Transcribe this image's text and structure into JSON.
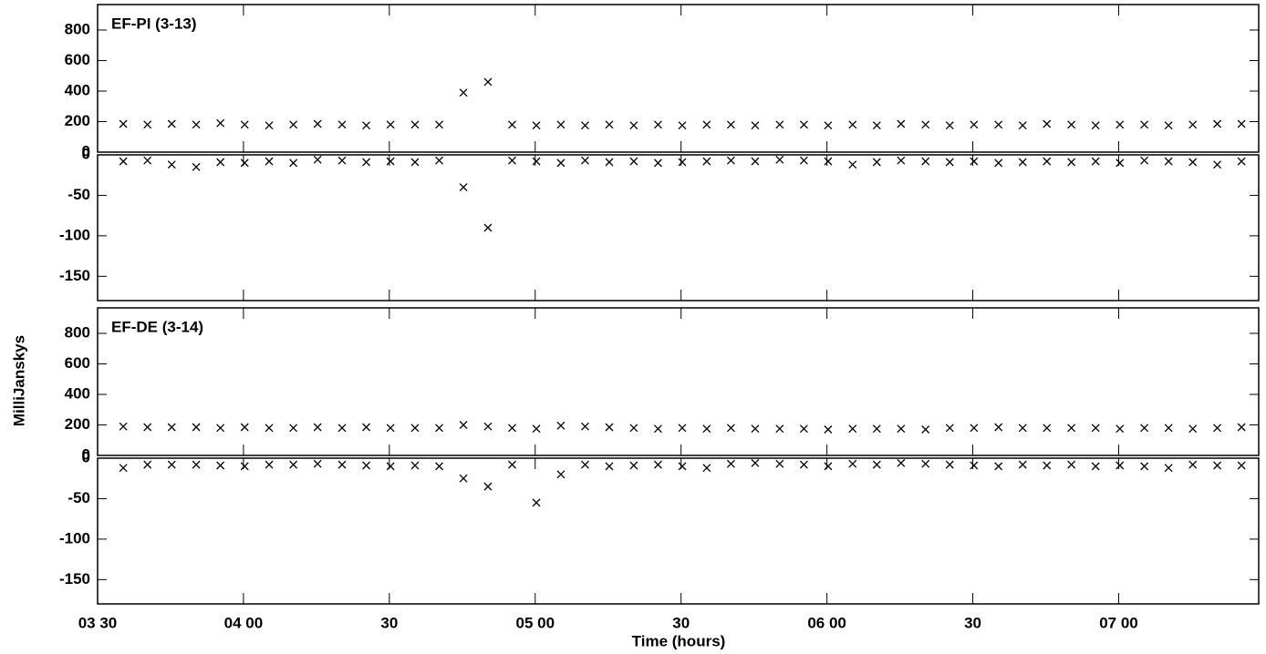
{
  "ylabel": "MilliJanskys",
  "xlabel": "Time (hours)",
  "chart_data": [
    {
      "type": "scatter",
      "label": "EF-PI (3-13)",
      "color": "#000000",
      "x": [
        3.588,
        3.671,
        3.754,
        3.838,
        3.921,
        4.004,
        4.088,
        4.171,
        4.254,
        4.338,
        4.421,
        4.504,
        4.588,
        4.671,
        4.754,
        4.838,
        4.921,
        5.004,
        5.088,
        5.171,
        5.254,
        5.338,
        5.421,
        5.504,
        5.588,
        5.671,
        5.754,
        5.838,
        5.921,
        6.004,
        6.088,
        6.171,
        6.254,
        6.338,
        6.421,
        6.504,
        6.588,
        6.671,
        6.754,
        6.838,
        6.921,
        7.004,
        7.088,
        7.171,
        7.254,
        7.338,
        7.421
      ],
      "values": [
        185,
        180,
        185,
        180,
        190,
        180,
        175,
        180,
        185,
        180,
        175,
        180,
        180,
        180,
        390,
        460,
        180,
        175,
        180,
        175,
        180,
        175,
        180,
        175,
        180,
        180,
        175,
        180,
        180,
        175,
        180,
        175,
        185,
        180,
        175,
        180,
        180,
        175,
        185,
        180,
        175,
        180,
        180,
        175,
        180,
        185,
        185
      ],
      "xlim": [
        3.5,
        7.48
      ],
      "xticks": [
        {
          "value": 3.5,
          "label": "03 30"
        },
        {
          "value": 4,
          "label": "04 00"
        },
        {
          "value": 4.5,
          "label": "30"
        },
        {
          "value": 5,
          "label": "05 00"
        },
        {
          "value": 5.5,
          "label": "30"
        },
        {
          "value": 6,
          "label": "06 00"
        },
        {
          "value": 6.5,
          "label": "30"
        },
        {
          "value": 7,
          "label": "07 00"
        }
      ],
      "ylim": [
        0,
        967
      ],
      "yticks": [
        0,
        200,
        400,
        600,
        800
      ]
    },
    {
      "type": "scatter",
      "color": "#000000",
      "x": [
        3.588,
        3.671,
        3.754,
        3.838,
        3.921,
        4.004,
        4.088,
        4.171,
        4.254,
        4.338,
        4.421,
        4.504,
        4.588,
        4.671,
        4.754,
        4.838,
        4.921,
        5.004,
        5.088,
        5.171,
        5.254,
        5.338,
        5.421,
        5.504,
        5.588,
        5.671,
        5.754,
        5.838,
        5.921,
        6.004,
        6.088,
        6.171,
        6.254,
        6.338,
        6.421,
        6.504,
        6.588,
        6.671,
        6.754,
        6.838,
        6.921,
        7.004,
        7.088,
        7.171,
        7.254,
        7.338,
        7.421
      ],
      "values": [
        -8,
        -7,
        -12,
        -15,
        -9,
        -10,
        -8,
        -10,
        -6,
        -7,
        -9,
        -8,
        -9,
        -7,
        -40,
        -90,
        -7,
        -8,
        -10,
        -7,
        -9,
        -8,
        -10,
        -9,
        -8,
        -7,
        -8,
        -6,
        -7,
        -8,
        -12,
        -9,
        -7,
        -8,
        -9,
        -8,
        -10,
        -9,
        -8,
        -9,
        -8,
        -10,
        -7,
        -8,
        -9,
        -12,
        -8
      ],
      "xlim": [
        3.5,
        7.48
      ],
      "xticks": [
        {
          "value": 3.5,
          "label": "03 30"
        },
        {
          "value": 4,
          "label": "04 00"
        },
        {
          "value": 4.5,
          "label": "30"
        },
        {
          "value": 5,
          "label": "05 00"
        },
        {
          "value": 5.5,
          "label": "30"
        },
        {
          "value": 6,
          "label": "06 00"
        },
        {
          "value": 6.5,
          "label": "30"
        },
        {
          "value": 7,
          "label": "07 00"
        }
      ],
      "ylim": [
        -180,
        0
      ],
      "yticks": [
        0,
        -50,
        -100,
        -150
      ]
    },
    {
      "type": "scatter",
      "label": "EF-DE (3-14)",
      "color": "#000000",
      "x": [
        3.588,
        3.671,
        3.754,
        3.838,
        3.921,
        4.004,
        4.088,
        4.171,
        4.254,
        4.338,
        4.421,
        4.504,
        4.588,
        4.671,
        4.754,
        4.838,
        4.921,
        5.004,
        5.088,
        5.171,
        5.254,
        5.338,
        5.421,
        5.504,
        5.588,
        5.671,
        5.754,
        5.838,
        5.921,
        6.004,
        6.088,
        6.171,
        6.254,
        6.338,
        6.421,
        6.504,
        6.588,
        6.671,
        6.754,
        6.838,
        6.921,
        7.004,
        7.088,
        7.171,
        7.254,
        7.338,
        7.421
      ],
      "values": [
        190,
        185,
        185,
        185,
        180,
        185,
        180,
        180,
        185,
        180,
        185,
        180,
        180,
        180,
        200,
        190,
        180,
        175,
        195,
        190,
        185,
        180,
        175,
        180,
        175,
        180,
        175,
        175,
        175,
        170,
        175,
        175,
        175,
        170,
        180,
        180,
        185,
        180,
        180,
        180,
        180,
        175,
        180,
        180,
        175,
        180,
        185
      ],
      "xlim": [
        3.5,
        7.48
      ],
      "xticks": [
        {
          "value": 3.5,
          "label": "03 30"
        },
        {
          "value": 4,
          "label": "04 00"
        },
        {
          "value": 4.5,
          "label": "30"
        },
        {
          "value": 5,
          "label": "05 00"
        },
        {
          "value": 5.5,
          "label": "30"
        },
        {
          "value": 6,
          "label": "06 00"
        },
        {
          "value": 6.5,
          "label": "30"
        },
        {
          "value": 7,
          "label": "07 00"
        }
      ],
      "ylim": [
        0,
        967
      ],
      "yticks": [
        0,
        200,
        400,
        600,
        800
      ]
    },
    {
      "type": "scatter",
      "color": "#000000",
      "x": [
        3.588,
        3.671,
        3.754,
        3.838,
        3.921,
        4.004,
        4.088,
        4.171,
        4.254,
        4.338,
        4.421,
        4.504,
        4.588,
        4.671,
        4.754,
        4.838,
        4.921,
        5.004,
        5.088,
        5.171,
        5.254,
        5.338,
        5.421,
        5.504,
        5.588,
        5.671,
        5.754,
        5.838,
        5.921,
        6.004,
        6.088,
        6.171,
        6.254,
        6.338,
        6.421,
        6.504,
        6.588,
        6.671,
        6.754,
        6.838,
        6.921,
        7.004,
        7.088,
        7.171,
        7.254,
        7.338,
        7.421
      ],
      "values": [
        -12,
        -8,
        -8,
        -8,
        -9,
        -10,
        -8,
        -8,
        -7,
        -8,
        -9,
        -10,
        -9,
        -10,
        -25,
        -35,
        -8,
        -55,
        -20,
        -8,
        -10,
        -9,
        -8,
        -10,
        -12,
        -7,
        -6,
        -7,
        -8,
        -10,
        -7,
        -8,
        -6,
        -7,
        -8,
        -9,
        -10,
        -8,
        -9,
        -8,
        -10,
        -9,
        -10,
        -12,
        -8,
        -9,
        -9
      ],
      "xlim": [
        3.5,
        7.48
      ],
      "xticks": [
        {
          "value": 3.5,
          "label": "03 30"
        },
        {
          "value": 4,
          "label": "04 00"
        },
        {
          "value": 4.5,
          "label": "30"
        },
        {
          "value": 5,
          "label": "05 00"
        },
        {
          "value": 5.5,
          "label": "30"
        },
        {
          "value": 6,
          "label": "06 00"
        },
        {
          "value": 6.5,
          "label": "30"
        },
        {
          "value": 7,
          "label": "07 00"
        }
      ],
      "ylim": [
        -180,
        0
      ],
      "yticks": [
        0,
        -50,
        -100,
        -150
      ]
    }
  ]
}
